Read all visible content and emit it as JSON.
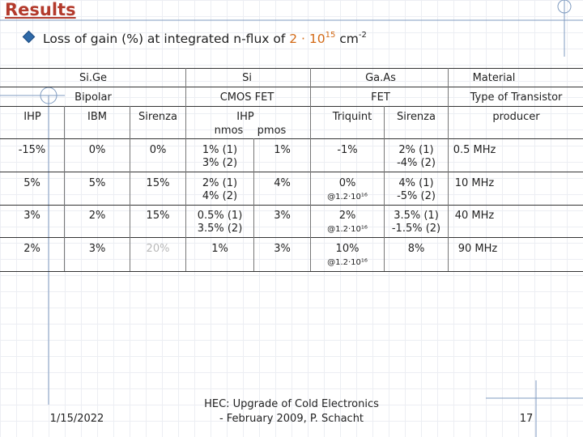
{
  "slide": {
    "title": "Results",
    "bullet": {
      "text_before": "Loss of gain (%) at integrated n-flux of ",
      "flux_base": "2 · 10",
      "flux_exp": "15",
      "unit": " cm",
      "unit_exp": "-2"
    }
  },
  "table": {
    "material_row": {
      "sige": "Si.Ge",
      "si": "Si",
      "gaas": "Ga.As",
      "label": "Material"
    },
    "transistor_row": {
      "bipolar": "Bipolar",
      "cmos": "CMOS FET",
      "fet": "FET",
      "label": "Type of Transistor"
    },
    "producer_row": {
      "ihp": "IHP",
      "ibm": "IBM",
      "sirenza1": "Sirenza",
      "ihp2": "IHP",
      "nmos": "nmos",
      "pmos": "pmos",
      "triquint": "Triquint",
      "sirenza2": "Sirenza",
      "label": "producer"
    },
    "rows": [
      {
        "c1": "-15%",
        "c2": "0%",
        "c3": "0%",
        "c4a": "1% (1)",
        "c4b": "3% (2)",
        "c5": "1%",
        "c6": "-1%",
        "c6sub": "",
        "c7a": "2% (1)",
        "c7b": "-4% (2)",
        "c8": "0.5 MHz"
      },
      {
        "c1": "5%",
        "c2": "5%",
        "c3": "15%",
        "c4a": "2% (1)",
        "c4b": "4% (2)",
        "c5": "4%",
        "c6": "0%",
        "c6sub": "@1.2·10¹⁶",
        "c7a": "4% (1)",
        "c7b": "-5% (2)",
        "c8": "10 MHz"
      },
      {
        "c1": "3%",
        "c2": "2%",
        "c3": "15%",
        "c4a": "0.5% (1)",
        "c4b": "3.5% (2)",
        "c5": "3%",
        "c6": "2%",
        "c6sub": "@1.2·10¹⁶",
        "c7a": "3.5% (1)",
        "c7b": "-1.5% (2)",
        "c8": "40 MHz"
      },
      {
        "c1": "2%",
        "c2": "3%",
        "c3": "20%",
        "c4a": "1%",
        "c4b": "",
        "c5": "3%",
        "c6": "10%",
        "c6sub": "@1.2·10¹⁶",
        "c7a": "8%",
        "c7b": "",
        "c8": "90 MHz"
      }
    ],
    "colors": {
      "faded_cell": "#b8b8b8"
    }
  },
  "footer": {
    "date": "1/15/2022",
    "center_line1": "HEC: Upgrade of Cold Electronics",
    "center_line2": "- February 2009, P. Schacht",
    "page": "17"
  },
  "colors": {
    "title": "#b33a2c",
    "accent": "#d36a16",
    "bullet": "#2f6aa8"
  }
}
